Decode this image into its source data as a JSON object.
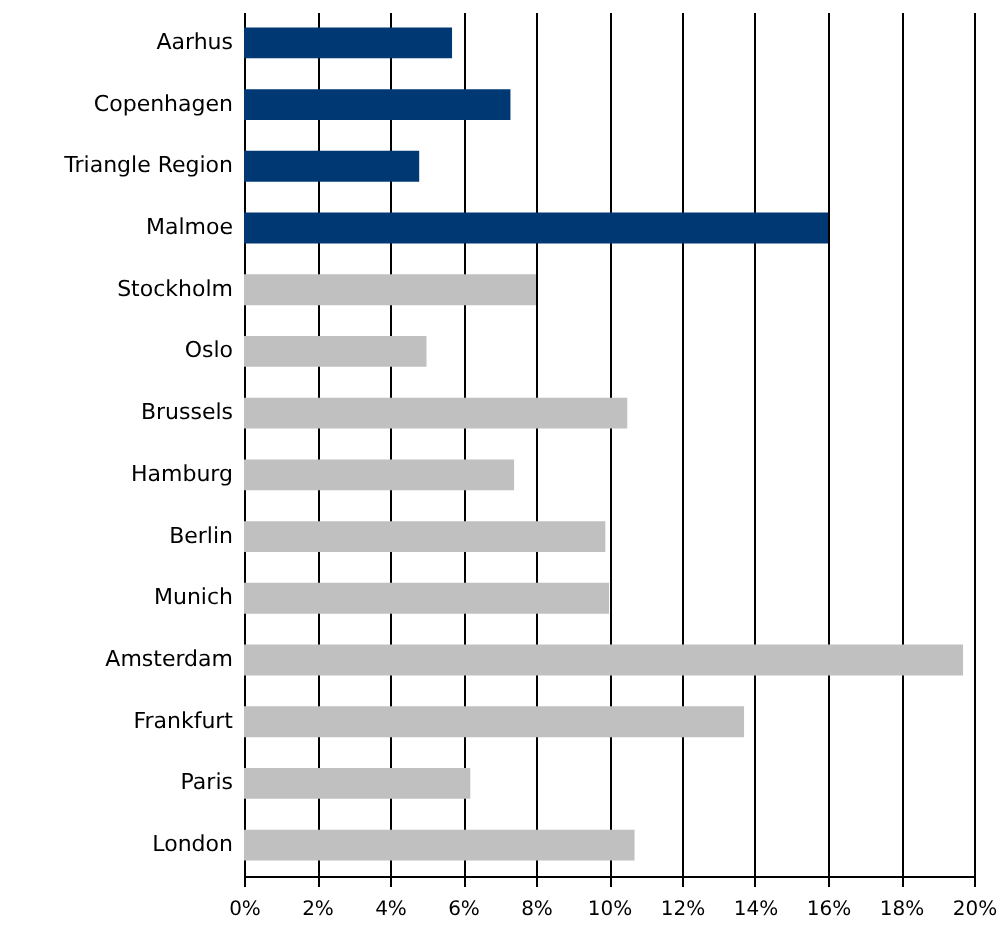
{
  "chart_data": {
    "type": "bar",
    "orientation": "horizontal",
    "categories": [
      "Aarhus",
      "Copenhagen",
      "Triangle Region",
      "Malmoe",
      "Stockholm",
      "Oslo",
      "Brussels",
      "Hamburg",
      "Berlin",
      "Munich",
      "Amsterdam",
      "Frankfurt",
      "Paris",
      "London"
    ],
    "values": [
      5.7,
      7.3,
      4.8,
      16.0,
      8.0,
      5.0,
      10.5,
      7.4,
      9.9,
      10.0,
      19.7,
      13.7,
      6.2,
      10.7
    ],
    "colors": [
      "#003873",
      "#003873",
      "#003873",
      "#003873",
      "#c0c0c0",
      "#c0c0c0",
      "#c0c0c0",
      "#c0c0c0",
      "#c0c0c0",
      "#c0c0c0",
      "#c0c0c0",
      "#c0c0c0",
      "#c0c0c0",
      "#c0c0c0"
    ],
    "xlim": [
      0,
      20
    ],
    "xticks": [
      {
        "value": 0,
        "label": "0%"
      },
      {
        "value": 2,
        "label": "2%"
      },
      {
        "value": 4,
        "label": "4%"
      },
      {
        "value": 6,
        "label": "6%"
      },
      {
        "value": 8,
        "label": "8%"
      },
      {
        "value": 10,
        "label": "10%"
      },
      {
        "value": 12,
        "label": "12%"
      },
      {
        "value": 14,
        "label": "14%"
      },
      {
        "value": 16,
        "label": "16%"
      },
      {
        "value": 18,
        "label": "18%"
      },
      {
        "value": 20,
        "label": "20%"
      }
    ],
    "grid": "x"
  }
}
